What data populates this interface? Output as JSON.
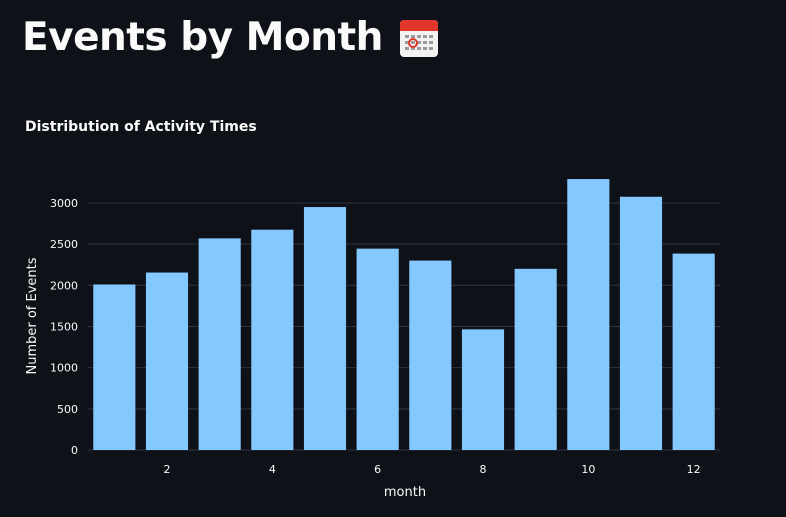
{
  "header": {
    "title": "Events by Month",
    "icon": "calendar-icon"
  },
  "colors": {
    "background": "#0e1117",
    "bar": "#83c9ff",
    "text": "#fafafa",
    "grid": "#31333f"
  },
  "chart_data": {
    "type": "bar",
    "title": "Distribution of Activity Times",
    "xlabel": "month",
    "ylabel": "Number of Events",
    "x": [
      1,
      2,
      3,
      4,
      5,
      6,
      7,
      8,
      9,
      10,
      11,
      12
    ],
    "values": [
      2010,
      2155,
      2570,
      2675,
      2950,
      2445,
      2300,
      1465,
      2200,
      3290,
      3075,
      2385
    ],
    "x_ticks": [
      2,
      4,
      6,
      8,
      10,
      12
    ],
    "y_ticks": [
      0,
      500,
      1000,
      1500,
      2000,
      2500,
      3000
    ],
    "ylim": [
      0,
      3400
    ],
    "xlim": [
      0.5,
      12.5
    ],
    "grid": true,
    "legend": false
  }
}
